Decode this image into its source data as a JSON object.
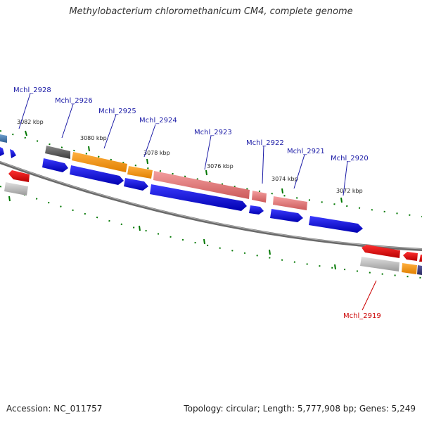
{
  "title": "Methylobacterium chloromethanicum CM4, complete genome",
  "footer": {
    "accession": "Accession: NC_011757",
    "summary": "Topology: circular; Length: 5,777,908 bp; Genes: 5,249"
  },
  "colors": {
    "forward_cds": "#0000dd",
    "reverse_cds": "#e00000",
    "backbone": "#808080",
    "tick": "#007700",
    "label_forward": "#1a1aa6",
    "label_reverse": "#cc0000",
    "orange_feature": "#ff9900",
    "pink_feature": "#e88080",
    "gray_feature": "#c0c0c0",
    "dark_feature": "#555555"
  },
  "kbp_ticks": [
    "3082 kbp",
    "3080 kbp",
    "3078 kbp",
    "3076 kbp",
    "3074 kbp",
    "3072 kbp"
  ],
  "gene_labels": [
    {
      "text": "Mchl_2928",
      "strand": "forward"
    },
    {
      "text": "Mchl_2926",
      "strand": "forward"
    },
    {
      "text": "Mchl_2925",
      "strand": "forward"
    },
    {
      "text": "Mchl_2924",
      "strand": "forward"
    },
    {
      "text": "Mchl_2923",
      "strand": "forward"
    },
    {
      "text": "Mchl_2922",
      "strand": "forward"
    },
    {
      "text": "Mchl_2921",
      "strand": "forward"
    },
    {
      "text": "Mchl_2920",
      "strand": "forward"
    },
    {
      "text": "Mchl_2919",
      "strand": "reverse"
    }
  ]
}
